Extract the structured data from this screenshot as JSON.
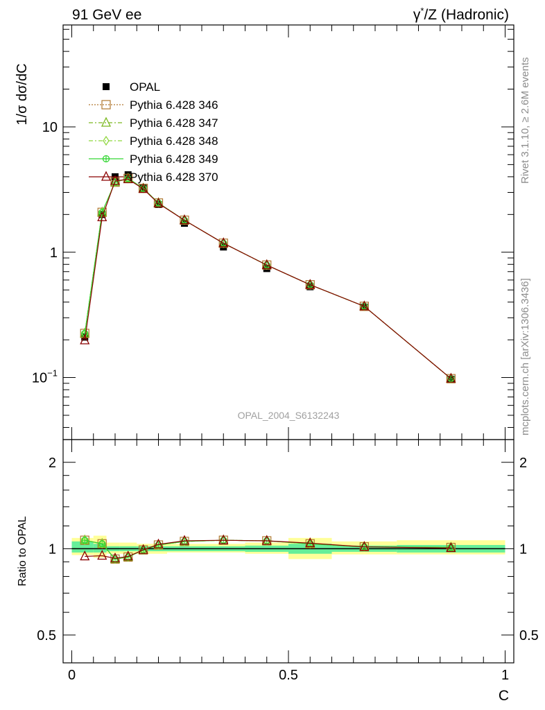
{
  "header": {
    "left": "91 GeV ee",
    "right_sup": "*",
    "right_gamma": "γ",
    "right_rest": "/Z (Hadronic)"
  },
  "side": {
    "rivet": "Rivet 3.1.10, ≥ 2.6M events",
    "mcplots": "mcplots.cern.ch [arXiv:1306.3436]"
  },
  "watermark": "OPAL_2004_S6132243",
  "chart_data": [
    {
      "type": "line",
      "panel": "main",
      "ylabel": "1/σ dσ/dC",
      "yscale": "log",
      "xlim": [
        -0.02,
        1.02
      ],
      "ylim": [
        0.032,
        65
      ],
      "yticks": [
        {
          "value": 0.1,
          "label_base": "10",
          "label_exp": "−1"
        },
        {
          "value": 1,
          "label_base": "1",
          "label_exp": ""
        },
        {
          "value": 10,
          "label_base": "10",
          "label_exp": ""
        }
      ],
      "x": [
        0.03,
        0.07,
        0.1,
        0.13,
        0.165,
        0.2,
        0.26,
        0.35,
        0.45,
        0.55,
        0.675,
        0.875
      ],
      "reference": {
        "name": "OPAL",
        "color": "#000000",
        "values": [
          0.21,
          2.0,
          4.0,
          4.15,
          3.25,
          2.4,
          1.7,
          1.1,
          0.74,
          0.53,
          0.365,
          0.097
        ]
      },
      "series": [
        {
          "name": "Pythia 6.428 346",
          "color": "#b07830",
          "marker": "square-open",
          "dash": "2,2",
          "values": [
            0.225,
            2.08,
            3.62,
            3.88,
            3.23,
            2.47,
            1.8,
            1.18,
            0.79,
            0.55,
            0.37,
            0.098
          ]
        },
        {
          "name": "Pythia 6.428 347",
          "color": "#7ab81e",
          "marker": "triangle-open",
          "dash": "6,3,2,3",
          "values": [
            0.225,
            2.08,
            3.62,
            3.88,
            3.23,
            2.47,
            1.8,
            1.18,
            0.79,
            0.55,
            0.37,
            0.098
          ]
        },
        {
          "name": "Pythia 6.428 348",
          "color": "#8ed63c",
          "marker": "diamond-open",
          "dash": "6,3,2,3",
          "values": [
            0.225,
            2.08,
            3.62,
            3.88,
            3.23,
            2.47,
            1.8,
            1.18,
            0.79,
            0.55,
            0.37,
            0.098
          ]
        },
        {
          "name": "Pythia 6.428 349",
          "color": "#33d633",
          "marker": "circle-cross",
          "dash": "",
          "values": [
            0.225,
            2.08,
            3.62,
            3.88,
            3.23,
            2.47,
            1.8,
            1.18,
            0.79,
            0.55,
            0.37,
            0.098
          ]
        },
        {
          "name": "Pythia 6.428 370",
          "color": "#8b0000",
          "marker": "triangle-open",
          "dash": "",
          "values": [
            0.198,
            1.9,
            3.7,
            3.82,
            3.2,
            2.45,
            1.8,
            1.18,
            0.79,
            0.55,
            0.37,
            0.098
          ]
        }
      ]
    },
    {
      "type": "line",
      "panel": "ratio",
      "xlabel": "C",
      "ylabel": "Ratio to OPAL",
      "yscale": "log",
      "xlim": [
        -0.02,
        1.02
      ],
      "ylim": [
        0.4,
        2.4
      ],
      "xticks": [
        0,
        0.5,
        1
      ],
      "xtick_labels": [
        "0",
        "0.5",
        "1"
      ],
      "yticks": [
        0.5,
        1,
        2
      ],
      "ytick_labels": [
        "0.5",
        "1",
        "2"
      ],
      "x": [
        0.03,
        0.07,
        0.1,
        0.13,
        0.165,
        0.2,
        0.26,
        0.35,
        0.45,
        0.55,
        0.675,
        0.875
      ],
      "bands": [
        {
          "x0": 0.0,
          "x1": 0.05,
          "stat": [
            0.97,
            1.06
          ],
          "total": [
            0.95,
            1.09
          ]
        },
        {
          "x0": 0.05,
          "x1": 0.08,
          "stat": [
            0.97,
            1.04
          ],
          "total": [
            0.93,
            1.11
          ]
        },
        {
          "x0": 0.08,
          "x1": 0.11,
          "stat": [
            0.98,
            1.02
          ],
          "total": [
            0.96,
            1.05
          ]
        },
        {
          "x0": 0.11,
          "x1": 0.15,
          "stat": [
            0.98,
            1.02
          ],
          "total": [
            0.96,
            1.05
          ]
        },
        {
          "x0": 0.15,
          "x1": 0.18,
          "stat": [
            0.98,
            1.02
          ],
          "total": [
            0.96,
            1.04
          ]
        },
        {
          "x0": 0.18,
          "x1": 0.22,
          "stat": [
            0.98,
            1.02
          ],
          "total": [
            0.96,
            1.04
          ]
        },
        {
          "x0": 0.22,
          "x1": 0.3,
          "stat": [
            0.98,
            1.02
          ],
          "total": [
            0.97,
            1.04
          ]
        },
        {
          "x0": 0.3,
          "x1": 0.4,
          "stat": [
            0.98,
            1.02
          ],
          "total": [
            0.97,
            1.04
          ]
        },
        {
          "x0": 0.4,
          "x1": 0.5,
          "stat": [
            0.975,
            1.025
          ],
          "total": [
            0.96,
            1.05
          ]
        },
        {
          "x0": 0.5,
          "x1": 0.6,
          "stat": [
            0.96,
            1.04
          ],
          "total": [
            0.92,
            1.09
          ]
        },
        {
          "x0": 0.6,
          "x1": 0.75,
          "stat": [
            0.975,
            1.025
          ],
          "total": [
            0.955,
            1.06
          ]
        },
        {
          "x0": 0.75,
          "x1": 1.0,
          "stat": [
            0.97,
            1.03
          ],
          "total": [
            0.955,
            1.07
          ]
        }
      ],
      "series": [
        {
          "name": "Pythia 6.428 346",
          "color": "#b07830",
          "marker": "square-open",
          "dash": "2,2",
          "values": [
            1.07,
            1.04,
            0.92,
            0.935,
            0.99,
            1.03,
            1.06,
            1.07,
            1.065,
            1.04,
            1.015,
            1.01
          ]
        },
        {
          "name": "Pythia 6.428 347",
          "color": "#7ab81e",
          "marker": "triangle-open",
          "dash": "6,3,2,3",
          "values": [
            1.07,
            1.04,
            0.92,
            0.935,
            0.99,
            1.03,
            1.06,
            1.07,
            1.065,
            1.04,
            1.015,
            1.01
          ]
        },
        {
          "name": "Pythia 6.428 348",
          "color": "#8ed63c",
          "marker": "diamond-open",
          "dash": "6,3,2,3",
          "values": [
            1.07,
            1.04,
            0.92,
            0.935,
            0.99,
            1.03,
            1.06,
            1.07,
            1.065,
            1.04,
            1.015,
            1.01
          ]
        },
        {
          "name": "Pythia 6.428 349",
          "color": "#33d633",
          "marker": "circle-cross",
          "dash": "",
          "values": [
            1.07,
            1.04,
            0.92,
            0.935,
            0.99,
            1.03,
            1.06,
            1.07,
            1.065,
            1.04,
            1.015,
            1.01
          ]
        },
        {
          "name": "Pythia 6.428 370",
          "color": "#8b0000",
          "marker": "triangle-open",
          "dash": "",
          "values": [
            0.94,
            0.945,
            0.925,
            0.94,
            0.99,
            1.035,
            1.065,
            1.07,
            1.065,
            1.045,
            1.015,
            1.005
          ]
        }
      ]
    }
  ],
  "colors": {
    "band_total": "#ffff99",
    "band_stat": "#66ee99",
    "axis": "#000000"
  }
}
